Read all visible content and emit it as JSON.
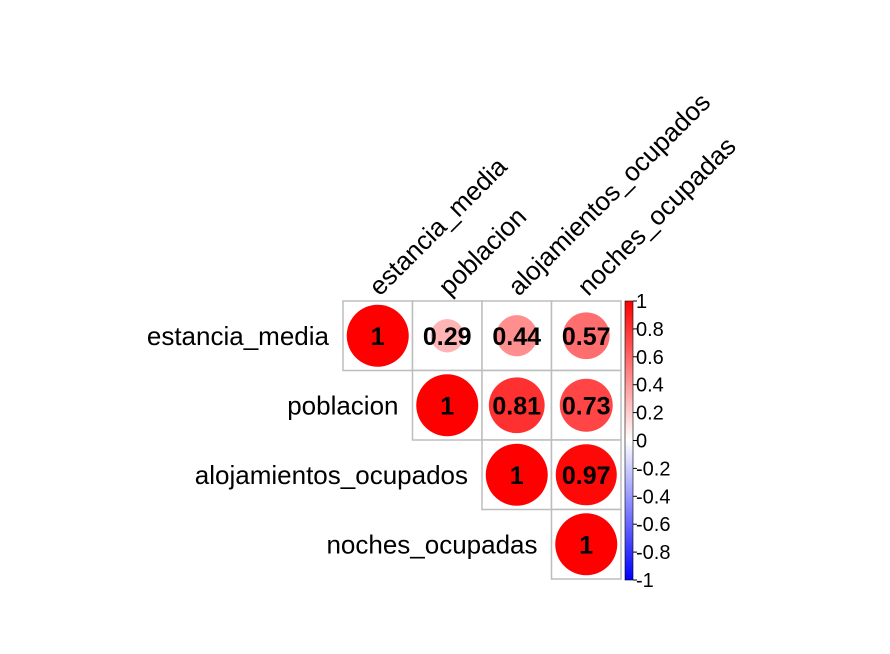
{
  "chart_data": {
    "type": "heatmap",
    "variant": "correlation-matrix-upper-circles",
    "variables": [
      "estancia_media",
      "poblacion",
      "alojamientos_ocupados",
      "noches_ocupadas"
    ],
    "matrix": [
      [
        1,
        0.29,
        0.44,
        0.57
      ],
      [
        null,
        1,
        0.81,
        0.73
      ],
      [
        null,
        null,
        1,
        0.97
      ],
      [
        null,
        null,
        null,
        1
      ]
    ],
    "cell_labels": [
      [
        "1",
        "0.29",
        "0.44",
        "0.57"
      ],
      [
        "",
        "1",
        "0.81",
        "0.73"
      ],
      [
        "",
        "",
        "1",
        "0.97"
      ],
      [
        "",
        "",
        "",
        "1"
      ]
    ],
    "colorbar": {
      "ticks": [
        "1",
        "0.8",
        "0.6",
        "0.4",
        "0.2",
        "0",
        "-0.2",
        "-0.4",
        "-0.6",
        "-0.8",
        "-1"
      ],
      "range": [
        -1,
        1
      ],
      "colors": {
        "negative": "#0000ff",
        "zero": "#ffffff",
        "positive": "#ff0000"
      }
    },
    "grid": true
  }
}
